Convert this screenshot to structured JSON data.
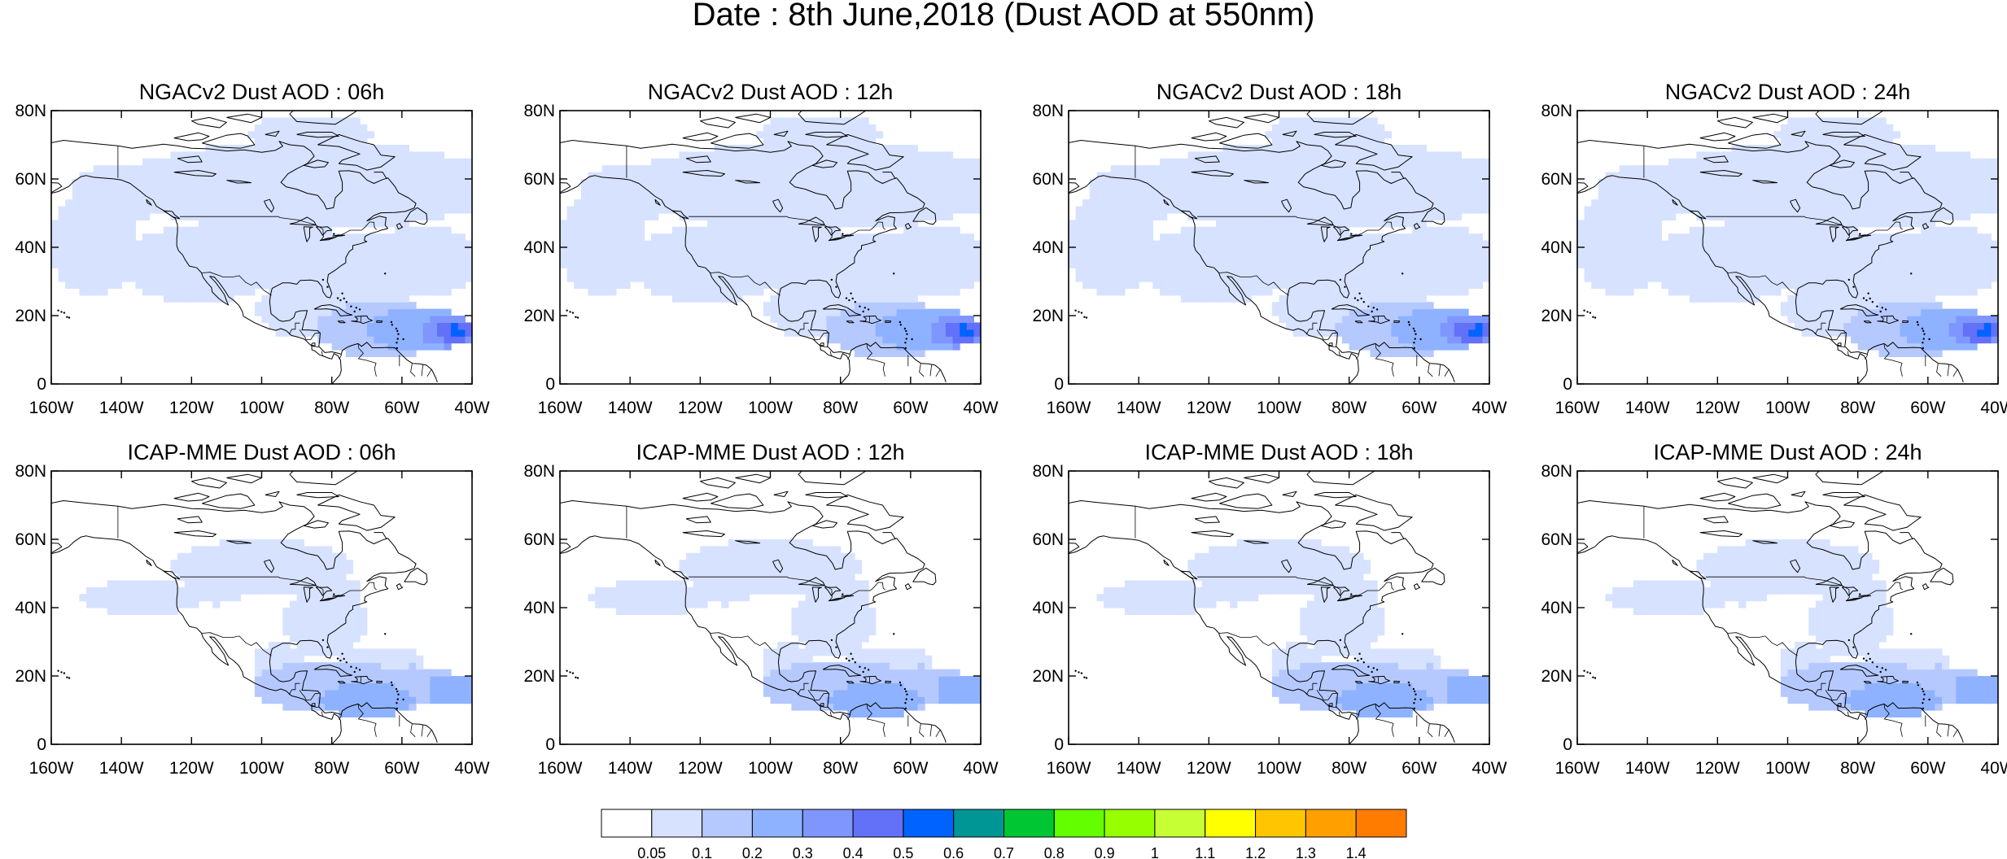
{
  "title": "Date : 8th June,2018 (Dust AOD at 550nm)",
  "panel_rows": [
    {
      "row_label": "NGACv2",
      "panels": [
        {
          "title": "NGACv2 Dust AOD : 06h",
          "core_shift": 0.0
        },
        {
          "title": "NGACv2 Dust AOD : 12h",
          "core_shift": 0.0
        },
        {
          "title": "NGACv2 Dust AOD : 18h",
          "core_shift": 0.1
        },
        {
          "title": "NGACv2 Dust AOD : 24h",
          "core_shift": 0.1
        }
      ]
    },
    {
      "row_label": "ICAP-MME",
      "panels": [
        {
          "title": "ICAP-MME Dust AOD : 06h"
        },
        {
          "title": "ICAP-MME Dust AOD : 12h"
        },
        {
          "title": "ICAP-MME Dust AOD : 18h"
        },
        {
          "title": "ICAP-MME Dust AOD : 24h"
        }
      ]
    }
  ],
  "axes": {
    "lon_range": [
      -160,
      -40
    ],
    "lat_range": [
      0,
      80
    ],
    "x_ticks": [
      {
        "value": -160,
        "label": "160W"
      },
      {
        "value": -140,
        "label": "140W"
      },
      {
        "value": -120,
        "label": "120W"
      },
      {
        "value": -100,
        "label": "100W"
      },
      {
        "value": -80,
        "label": "80W"
      },
      {
        "value": -60,
        "label": "60W"
      },
      {
        "value": -40,
        "label": "40W"
      }
    ],
    "y_ticks": [
      {
        "value": 80,
        "label": "80N"
      },
      {
        "value": 60,
        "label": "60N"
      },
      {
        "value": 40,
        "label": "40N"
      },
      {
        "value": 20,
        "label": "20N"
      },
      {
        "value": 0,
        "label": "0"
      }
    ]
  },
  "colorbar": {
    "labels": [
      "0.05",
      "0.1",
      "0.2",
      "0.3",
      "0.4",
      "0.5",
      "0.6",
      "0.7",
      "0.8",
      "0.9",
      "1",
      "1.1",
      "1.2",
      "1.3",
      "1.4"
    ],
    "colors": [
      "#ffffff",
      "#d6e2ff",
      "#b5c9ff",
      "#8eb2ff",
      "#7f96ff",
      "#6370f8",
      "#0063ff",
      "#009696",
      "#00c633",
      "#63ff00",
      "#96ff00",
      "#c6ff33",
      "#ffff00",
      "#ffc600",
      "#ffa000",
      "#ff7c00",
      "#ff1900"
    ]
  }
}
